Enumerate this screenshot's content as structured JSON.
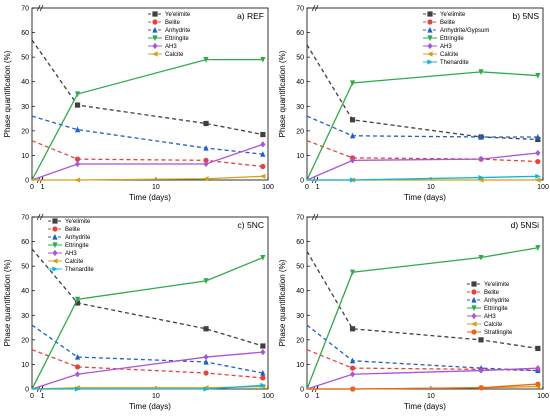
{
  "chart_data": [
    {
      "type": "line",
      "title": "a) REF",
      "xlabel": "Time (days)",
      "ylabel": "Phase quantification (%)",
      "x_ticks": [
        "0",
        "1",
        "10",
        "100"
      ],
      "ylim": [
        0,
        70
      ],
      "y_ticks": [
        0,
        10,
        20,
        30,
        40,
        50,
        60,
        70
      ],
      "legend_position": "top-right",
      "series": [
        {
          "name": "Ye'elimite",
          "color": "#404040",
          "marker": "square",
          "dashed": true,
          "points": [
            [
              0,
              57
            ],
            [
              2,
              30.5
            ],
            [
              28,
              23
            ],
            [
              90,
              18.5
            ]
          ]
        },
        {
          "name": "Belite",
          "color": "#e8413c",
          "marker": "circle",
          "dashed": true,
          "points": [
            [
              0,
              16
            ],
            [
              2,
              8.5
            ],
            [
              28,
              8
            ],
            [
              90,
              5.5
            ]
          ]
        },
        {
          "name": "Anhydrite",
          "color": "#1f5fc8",
          "marker": "triangle-up",
          "dashed": true,
          "points": [
            [
              0,
              26
            ],
            [
              2,
              20.5
            ],
            [
              28,
              13
            ],
            [
              90,
              10.5
            ]
          ]
        },
        {
          "name": "Ettringite",
          "color": "#2eaa4a",
          "marker": "triangle-down",
          "dashed": false,
          "points": [
            [
              0,
              0
            ],
            [
              2,
              35
            ],
            [
              28,
              49
            ],
            [
              90,
              49
            ]
          ]
        },
        {
          "name": "AH3",
          "color": "#a955d6",
          "marker": "diamond",
          "dashed": false,
          "points": [
            [
              0,
              0
            ],
            [
              2,
              6.5
            ],
            [
              28,
              6.5
            ],
            [
              90,
              14.5
            ]
          ]
        },
        {
          "name": "Calcite",
          "color": "#d4a017",
          "marker": "triangle-left",
          "dashed": false,
          "points": [
            [
              0,
              0
            ],
            [
              2,
              0
            ],
            [
              28,
              0.5
            ],
            [
              90,
              1.5
            ]
          ]
        }
      ]
    },
    {
      "type": "line",
      "title": "b) 5NS",
      "xlabel": "Time (days)",
      "ylabel": "Phase quantification (%)",
      "x_ticks": [
        "0",
        "1",
        "10",
        "100"
      ],
      "ylim": [
        0,
        70
      ],
      "y_ticks": [
        0,
        10,
        20,
        30,
        40,
        50,
        60,
        70
      ],
      "legend_position": "top-right",
      "series": [
        {
          "name": "Ye'elimite",
          "color": "#404040",
          "marker": "square",
          "dashed": true,
          "points": [
            [
              0,
              55
            ],
            [
              2,
              24.5
            ],
            [
              28,
              17.5
            ],
            [
              90,
              16.5
            ]
          ]
        },
        {
          "name": "Belite",
          "color": "#e8413c",
          "marker": "circle",
          "dashed": true,
          "points": [
            [
              0,
              16
            ],
            [
              2,
              9
            ],
            [
              28,
              8.5
            ],
            [
              90,
              7.5
            ]
          ]
        },
        {
          "name": "Anhydrite/Gypsum",
          "color": "#1f5fc8",
          "marker": "triangle-up",
          "dashed": true,
          "points": [
            [
              0,
              26
            ],
            [
              2,
              18
            ],
            [
              28,
              17.5
            ],
            [
              90,
              17.5
            ]
          ]
        },
        {
          "name": "Ettringite",
          "color": "#2eaa4a",
          "marker": "triangle-down",
          "dashed": false,
          "points": [
            [
              0,
              0
            ],
            [
              2,
              39.5
            ],
            [
              28,
              44
            ],
            [
              90,
              42.5
            ]
          ]
        },
        {
          "name": "AH3",
          "color": "#a955d6",
          "marker": "diamond",
          "dashed": false,
          "points": [
            [
              0,
              0
            ],
            [
              2,
              8
            ],
            [
              28,
              8.5
            ],
            [
              90,
              11
            ]
          ]
        },
        {
          "name": "Calcite",
          "color": "#d4a017",
          "marker": "triangle-left",
          "dashed": false,
          "points": [
            [
              0,
              0
            ],
            [
              2,
              0
            ],
            [
              28,
              0
            ],
            [
              90,
              0
            ]
          ]
        },
        {
          "name": "Thenardite",
          "color": "#17b4cf",
          "marker": "triangle-right",
          "dashed": false,
          "points": [
            [
              0,
              0
            ],
            [
              2,
              0
            ],
            [
              28,
              1
            ],
            [
              90,
              1.5
            ]
          ]
        }
      ]
    },
    {
      "type": "line",
      "title": "c) 5NC",
      "xlabel": "Time (days)",
      "ylabel": "Phase quantification (%)",
      "x_ticks": [
        "0",
        "1",
        "10",
        "100"
      ],
      "ylim": [
        0,
        70
      ],
      "y_ticks": [
        0,
        10,
        20,
        30,
        40,
        50,
        60,
        70
      ],
      "legend_position": "top-left",
      "series": [
        {
          "name": "Ye'elimite",
          "color": "#404040",
          "marker": "square",
          "dashed": true,
          "points": [
            [
              0,
              57
            ],
            [
              2,
              35
            ],
            [
              28,
              24.5
            ],
            [
              90,
              17.5
            ]
          ]
        },
        {
          "name": "Belite",
          "color": "#e8413c",
          "marker": "circle",
          "dashed": true,
          "points": [
            [
              0,
              16
            ],
            [
              2,
              9
            ],
            [
              28,
              6.5
            ],
            [
              90,
              4.5
            ]
          ]
        },
        {
          "name": "Anhydrite",
          "color": "#1f5fc8",
          "marker": "triangle-up",
          "dashed": true,
          "points": [
            [
              0,
              26
            ],
            [
              2,
              13
            ],
            [
              28,
              11
            ],
            [
              90,
              6.5
            ]
          ]
        },
        {
          "name": "Ettringite",
          "color": "#2eaa4a",
          "marker": "triangle-down",
          "dashed": false,
          "points": [
            [
              0,
              0
            ],
            [
              2,
              36.5
            ],
            [
              28,
              44
            ],
            [
              90,
              53.5
            ]
          ]
        },
        {
          "name": "AH3",
          "color": "#a955d6",
          "marker": "diamond",
          "dashed": false,
          "points": [
            [
              0,
              0
            ],
            [
              2,
              6
            ],
            [
              28,
              13
            ],
            [
              90,
              15
            ]
          ]
        },
        {
          "name": "Calcite",
          "color": "#d4a017",
          "marker": "triangle-left",
          "dashed": false,
          "points": [
            [
              0,
              0
            ],
            [
              2,
              0.5
            ],
            [
              28,
              0.5
            ],
            [
              90,
              1
            ]
          ]
        },
        {
          "name": "Thenardite",
          "color": "#17b4cf",
          "marker": "triangle-right",
          "dashed": false,
          "points": [
            [
              0,
              0
            ],
            [
              2,
              0
            ],
            [
              28,
              0
            ],
            [
              90,
              1.5
            ]
          ]
        }
      ]
    },
    {
      "type": "line",
      "title": "d) 5NSi",
      "xlabel": "Time (days)",
      "ylabel": "Phase quantification (%)",
      "x_ticks": [
        "0",
        "1",
        "10",
        "100"
      ],
      "ylim": [
        0,
        70
      ],
      "y_ticks": [
        0,
        10,
        20,
        30,
        40,
        50,
        60,
        70
      ],
      "legend_position": "right",
      "series": [
        {
          "name": "Ye'elimite",
          "color": "#404040",
          "marker": "square",
          "dashed": true,
          "points": [
            [
              0,
              56
            ],
            [
              2,
              24.5
            ],
            [
              28,
              20
            ],
            [
              90,
              16.5
            ]
          ]
        },
        {
          "name": "Belite",
          "color": "#e8413c",
          "marker": "circle",
          "dashed": true,
          "points": [
            [
              0,
              16
            ],
            [
              2,
              8.5
            ],
            [
              28,
              8
            ],
            [
              90,
              7.5
            ]
          ]
        },
        {
          "name": "Anhydrite",
          "color": "#1f5fc8",
          "marker": "triangle-up",
          "dashed": true,
          "points": [
            [
              0,
              26
            ],
            [
              2,
              11.5
            ],
            [
              28,
              8.5
            ],
            [
              90,
              7.5
            ]
          ]
        },
        {
          "name": "Ettringite",
          "color": "#2eaa4a",
          "marker": "triangle-down",
          "dashed": false,
          "points": [
            [
              0,
              0
            ],
            [
              2,
              47.5
            ],
            [
              28,
              53.5
            ],
            [
              90,
              57.5
            ]
          ]
        },
        {
          "name": "AH3",
          "color": "#a955d6",
          "marker": "diamond",
          "dashed": false,
          "points": [
            [
              0,
              0
            ],
            [
              2,
              6
            ],
            [
              28,
              7.5
            ],
            [
              90,
              8.5
            ]
          ]
        },
        {
          "name": "Calcite",
          "color": "#d4a017",
          "marker": "triangle-left",
          "dashed": false,
          "points": [
            [
              0,
              0
            ],
            [
              2,
              0
            ],
            [
              28,
              0.5
            ],
            [
              90,
              1
            ]
          ]
        },
        {
          "name": "Stratlingite",
          "color": "#e8641c",
          "marker": "circle",
          "dashed": false,
          "points": [
            [
              0,
              0
            ],
            [
              2,
              0
            ],
            [
              28,
              0.5
            ],
            [
              90,
              2
            ]
          ]
        }
      ]
    }
  ]
}
